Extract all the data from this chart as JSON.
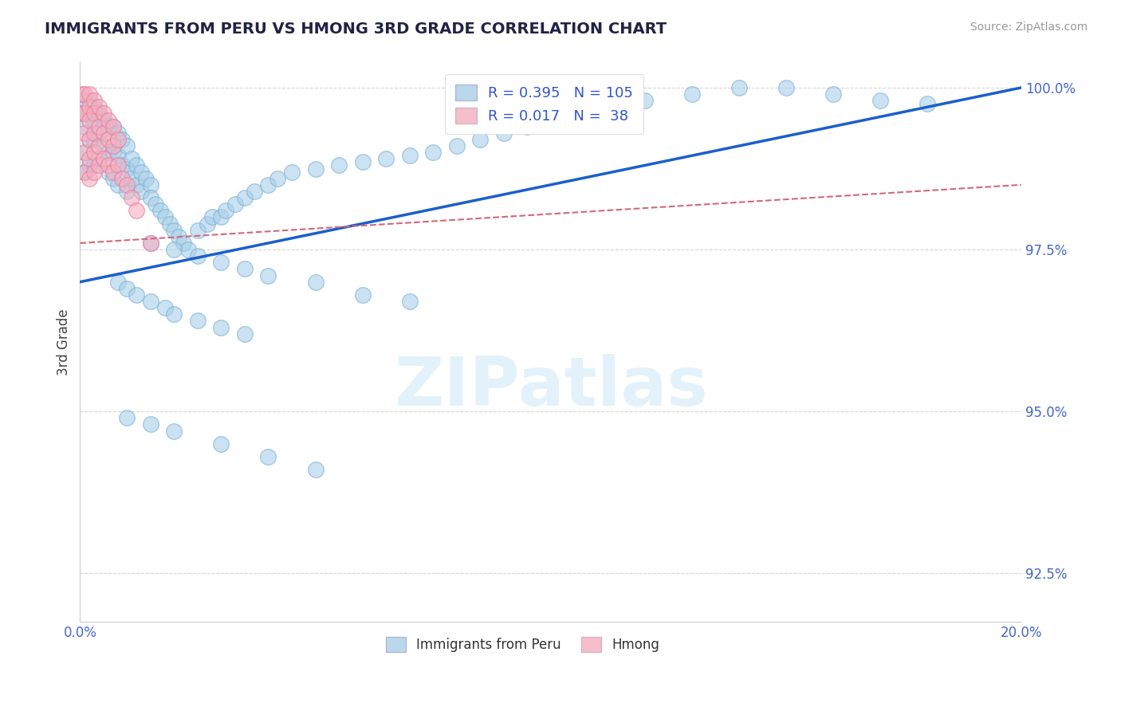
{
  "title": "IMMIGRANTS FROM PERU VS HMONG 3RD GRADE CORRELATION CHART",
  "source": "Source: ZipAtlas.com",
  "xlim": [
    0.0,
    0.2
  ],
  "ylim": [
    0.9175,
    1.004
  ],
  "ylabel": "3rd Grade",
  "blue_color": "#a8cfe8",
  "pink_color": "#f4aec0",
  "blue_edge": "#7ab0d4",
  "pink_edge": "#e87a9a",
  "trend_blue": "#1a5fcc",
  "trend_pink": "#d4687a",
  "R_blue": 0.395,
  "N_blue": 105,
  "R_pink": 0.017,
  "N_pink": 38,
  "legend_blue": "Immigrants from Peru",
  "legend_pink": "Hmong",
  "blue_trend_x0": 0.0,
  "blue_trend_y0": 0.97,
  "blue_trend_x1": 0.2,
  "blue_trend_y1": 1.0,
  "pink_trend_x0": 0.0,
  "pink_trend_y0": 0.976,
  "pink_trend_x1": 0.2,
  "pink_trend_y1": 0.985,
  "blue_points_x": [
    0.001,
    0.001,
    0.001,
    0.001,
    0.001,
    0.002,
    0.002,
    0.002,
    0.002,
    0.003,
    0.003,
    0.003,
    0.003,
    0.004,
    0.004,
    0.004,
    0.005,
    0.005,
    0.006,
    0.006,
    0.006,
    0.007,
    0.007,
    0.007,
    0.008,
    0.008,
    0.008,
    0.009,
    0.009,
    0.01,
    0.01,
    0.01,
    0.011,
    0.011,
    0.012,
    0.012,
    0.013,
    0.013,
    0.014,
    0.015,
    0.015,
    0.016,
    0.017,
    0.018,
    0.019,
    0.02,
    0.021,
    0.022,
    0.023,
    0.025,
    0.027,
    0.028,
    0.03,
    0.031,
    0.033,
    0.035,
    0.037,
    0.04,
    0.042,
    0.045,
    0.05,
    0.055,
    0.06,
    0.065,
    0.07,
    0.075,
    0.08,
    0.085,
    0.09,
    0.095,
    0.1,
    0.105,
    0.11,
    0.12,
    0.13,
    0.14,
    0.15,
    0.16,
    0.17,
    0.18,
    0.015,
    0.02,
    0.025,
    0.03,
    0.035,
    0.04,
    0.05,
    0.06,
    0.07,
    0.008,
    0.01,
    0.012,
    0.015,
    0.018,
    0.02,
    0.025,
    0.03,
    0.035,
    0.01,
    0.015,
    0.02,
    0.03,
    0.04,
    0.05
  ],
  "blue_points_y": [
    0.998,
    0.996,
    0.994,
    0.99,
    0.987,
    0.998,
    0.996,
    0.992,
    0.988,
    0.997,
    0.995,
    0.992,
    0.988,
    0.996,
    0.993,
    0.989,
    0.995,
    0.991,
    0.994,
    0.99,
    0.987,
    0.994,
    0.99,
    0.986,
    0.993,
    0.9895,
    0.985,
    0.992,
    0.988,
    0.991,
    0.9875,
    0.984,
    0.989,
    0.986,
    0.988,
    0.985,
    0.987,
    0.984,
    0.986,
    0.985,
    0.983,
    0.982,
    0.981,
    0.98,
    0.979,
    0.978,
    0.977,
    0.976,
    0.975,
    0.978,
    0.979,
    0.98,
    0.98,
    0.981,
    0.982,
    0.983,
    0.984,
    0.985,
    0.986,
    0.987,
    0.9875,
    0.988,
    0.9885,
    0.989,
    0.9895,
    0.99,
    0.991,
    0.992,
    0.993,
    0.994,
    0.995,
    0.996,
    0.997,
    0.998,
    0.999,
    1.0,
    1.0,
    0.999,
    0.998,
    0.9975,
    0.976,
    0.975,
    0.974,
    0.973,
    0.972,
    0.971,
    0.97,
    0.968,
    0.967,
    0.97,
    0.969,
    0.968,
    0.967,
    0.966,
    0.965,
    0.964,
    0.963,
    0.962,
    0.949,
    0.948,
    0.947,
    0.945,
    0.943,
    0.941
  ],
  "pink_points_x": [
    0.0005,
    0.0005,
    0.001,
    0.001,
    0.001,
    0.001,
    0.001,
    0.002,
    0.002,
    0.002,
    0.002,
    0.002,
    0.002,
    0.003,
    0.003,
    0.003,
    0.003,
    0.003,
    0.004,
    0.004,
    0.004,
    0.004,
    0.005,
    0.005,
    0.005,
    0.006,
    0.006,
    0.006,
    0.007,
    0.007,
    0.007,
    0.008,
    0.008,
    0.009,
    0.01,
    0.011,
    0.012,
    0.015
  ],
  "pink_points_y": [
    0.999,
    0.996,
    0.999,
    0.996,
    0.993,
    0.99,
    0.987,
    0.999,
    0.997,
    0.995,
    0.992,
    0.989,
    0.986,
    0.998,
    0.996,
    0.993,
    0.99,
    0.987,
    0.997,
    0.994,
    0.991,
    0.988,
    0.996,
    0.993,
    0.989,
    0.995,
    0.992,
    0.988,
    0.994,
    0.991,
    0.987,
    0.992,
    0.988,
    0.986,
    0.985,
    0.983,
    0.981,
    0.976
  ]
}
